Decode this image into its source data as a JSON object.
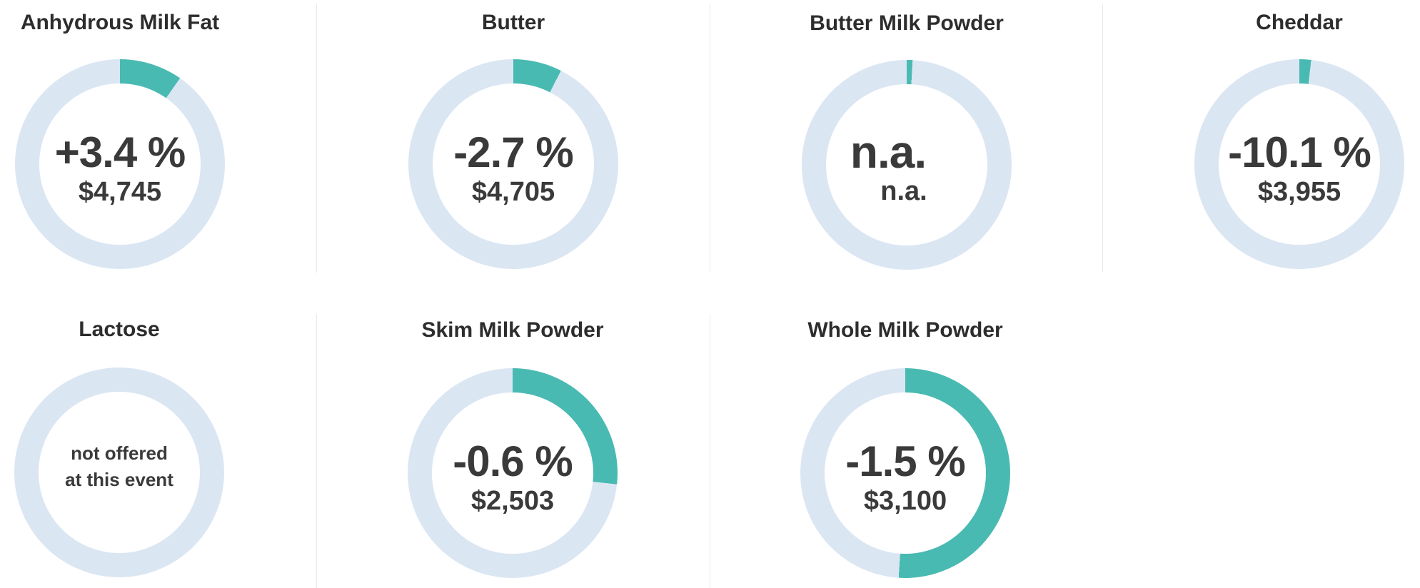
{
  "theme": {
    "accent_teal": "#49BAB2",
    "ring_track": "#DBE6F3",
    "title_color": "#2D2D2D",
    "value_color": "#3A3A3A",
    "divider_color": "#EAEAEA",
    "background": "#FFFFFF"
  },
  "chart_data": {
    "type": "donut-gauge-grid",
    "legend_position": "none",
    "gauges": [
      {
        "label": "Anhydrous Milk Fat",
        "change": "+3.4 %",
        "price": "$4,745",
        "ring_fill_pct": 9.7
      },
      {
        "label": "Butter",
        "change": "-2.7 %",
        "price": "$4,705",
        "ring_fill_pct": 7.5
      },
      {
        "label": "Butter Milk Powder",
        "change": "n.a.",
        "price": "n.a.",
        "ring_fill_pct": 0.9
      },
      {
        "label": "Cheddar",
        "change": "-10.1 %",
        "price": "$3,955",
        "ring_fill_pct": 1.8
      },
      {
        "label": "Lactose",
        "note_line1": "not offered",
        "note_line2": "at this event",
        "ring_fill_pct": 0
      },
      {
        "label": "Skim Milk Powder",
        "change": "-0.6 %",
        "price": "$2,503",
        "ring_fill_pct": 26.7
      },
      {
        "label": "Whole Milk Powder",
        "change": "-1.5 %",
        "price": "$3,100",
        "ring_fill_pct": 51.0
      }
    ]
  }
}
